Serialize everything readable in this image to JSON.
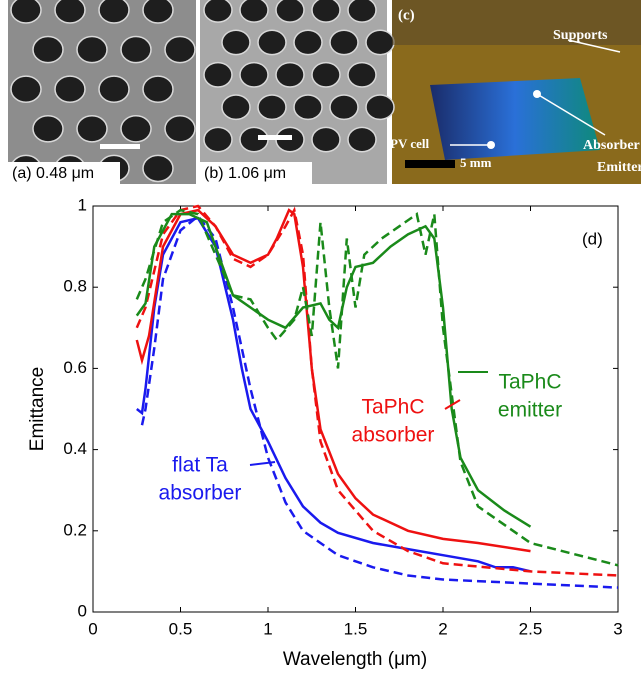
{
  "images": {
    "a": {
      "label": "(a) 0.48 μm"
    },
    "b": {
      "label": "(b) 1.06 μm"
    },
    "c": {
      "label": "(c)",
      "supports": "Supports",
      "pv_cell": "PV cell",
      "scale": "5 mm",
      "absorber": "Absorber",
      "emitter": "Emitter"
    }
  },
  "chart_data": {
    "type": "line",
    "x_label": "Wavelength (μm)",
    "y_label": "Emittance",
    "xlim": [
      0,
      3
    ],
    "xticks": [
      0,
      0.5,
      1,
      1.5,
      2,
      2.5,
      3
    ],
    "ylim": [
      0,
      1
    ],
    "yticks": [
      0,
      0.2,
      0.4,
      0.6,
      0.8,
      1
    ],
    "annotations": [
      {
        "lines": [
          "(d)"
        ],
        "color": "#000000"
      },
      {
        "lines": [
          "TaPhC",
          "emitter"
        ],
        "color": "#1a8a1a"
      },
      {
        "lines": [
          "TaPhC",
          "absorber"
        ],
        "color": "#ee1111"
      },
      {
        "lines": [
          "flat Ta",
          "absorber"
        ],
        "color": "#1a1aee"
      }
    ],
    "series": [
      {
        "color": "#1a1aee",
        "dash": false,
        "x": [
          0.25,
          0.28,
          0.3,
          0.35,
          0.4,
          0.5,
          0.6,
          0.7,
          0.8,
          0.85,
          0.9,
          1.0,
          1.1,
          1.2,
          1.3,
          1.4,
          1.6,
          1.8,
          2.0,
          2.2,
          2.3,
          2.4,
          2.5
        ],
        "values": [
          0.5,
          0.49,
          0.55,
          0.75,
          0.88,
          0.96,
          0.97,
          0.9,
          0.72,
          0.6,
          0.5,
          0.42,
          0.33,
          0.26,
          0.22,
          0.195,
          0.17,
          0.155,
          0.14,
          0.125,
          0.11,
          0.11,
          0.1
        ]
      },
      {
        "color": "#1a1aee",
        "dash": true,
        "x": [
          0.28,
          0.3,
          0.35,
          0.4,
          0.5,
          0.6,
          0.7,
          0.8,
          0.9,
          1.0,
          1.1,
          1.2,
          1.4,
          1.6,
          1.8,
          2.0,
          2.5,
          3.0
        ],
        "values": [
          0.46,
          0.5,
          0.65,
          0.82,
          0.94,
          0.975,
          0.92,
          0.75,
          0.55,
          0.38,
          0.27,
          0.2,
          0.14,
          0.11,
          0.09,
          0.08,
          0.07,
          0.06
        ]
      },
      {
        "color": "#ee1111",
        "dash": false,
        "x": [
          0.25,
          0.28,
          0.32,
          0.4,
          0.5,
          0.6,
          0.7,
          0.8,
          0.9,
          1.0,
          1.05,
          1.12,
          1.15,
          1.2,
          1.25,
          1.3,
          1.4,
          1.5,
          1.6,
          1.8,
          2.0,
          2.2,
          2.5
        ],
        "values": [
          0.67,
          0.62,
          0.68,
          0.9,
          0.98,
          0.99,
          0.95,
          0.88,
          0.86,
          0.88,
          0.92,
          0.99,
          0.98,
          0.85,
          0.6,
          0.45,
          0.34,
          0.28,
          0.24,
          0.2,
          0.18,
          0.17,
          0.15
        ]
      },
      {
        "color": "#ee1111",
        "dash": true,
        "x": [
          0.25,
          0.3,
          0.4,
          0.5,
          0.6,
          0.7,
          0.8,
          0.9,
          1.0,
          1.1,
          1.15,
          1.2,
          1.25,
          1.3,
          1.4,
          1.6,
          1.8,
          2.0,
          2.5,
          3.0
        ],
        "values": [
          0.7,
          0.75,
          0.93,
          0.99,
          1.0,
          0.95,
          0.87,
          0.85,
          0.88,
          0.95,
          0.99,
          0.88,
          0.6,
          0.42,
          0.3,
          0.2,
          0.15,
          0.12,
          0.1,
          0.09
        ]
      },
      {
        "color": "#1a8a1a",
        "dash": false,
        "x": [
          0.25,
          0.3,
          0.35,
          0.45,
          0.55,
          0.65,
          0.7,
          0.8,
          0.9,
          1.0,
          1.1,
          1.2,
          1.3,
          1.35,
          1.4,
          1.45,
          1.5,
          1.6,
          1.7,
          1.8,
          1.9,
          1.95,
          2.0,
          2.05,
          2.1,
          2.2,
          2.35,
          2.5
        ],
        "values": [
          0.73,
          0.76,
          0.9,
          0.98,
          0.98,
          0.96,
          0.9,
          0.78,
          0.75,
          0.72,
          0.7,
          0.75,
          0.76,
          0.72,
          0.7,
          0.8,
          0.85,
          0.86,
          0.9,
          0.93,
          0.95,
          0.92,
          0.75,
          0.5,
          0.38,
          0.3,
          0.25,
          0.21
        ]
      },
      {
        "color": "#1a8a1a",
        "dash": true,
        "x": [
          0.25,
          0.3,
          0.4,
          0.5,
          0.6,
          0.7,
          0.8,
          0.9,
          1.0,
          1.05,
          1.15,
          1.2,
          1.25,
          1.3,
          1.35,
          1.4,
          1.45,
          1.5,
          1.55,
          1.65,
          1.75,
          1.85,
          1.9,
          1.95,
          2.0,
          2.1,
          2.2,
          2.5,
          3.0
        ],
        "values": [
          0.77,
          0.82,
          0.96,
          0.99,
          0.98,
          0.88,
          0.78,
          0.77,
          0.7,
          0.67,
          0.72,
          0.8,
          0.68,
          0.96,
          0.75,
          0.6,
          0.92,
          0.75,
          0.88,
          0.92,
          0.95,
          0.98,
          0.88,
          0.98,
          0.7,
          0.37,
          0.26,
          0.17,
          0.115
        ]
      }
    ]
  }
}
